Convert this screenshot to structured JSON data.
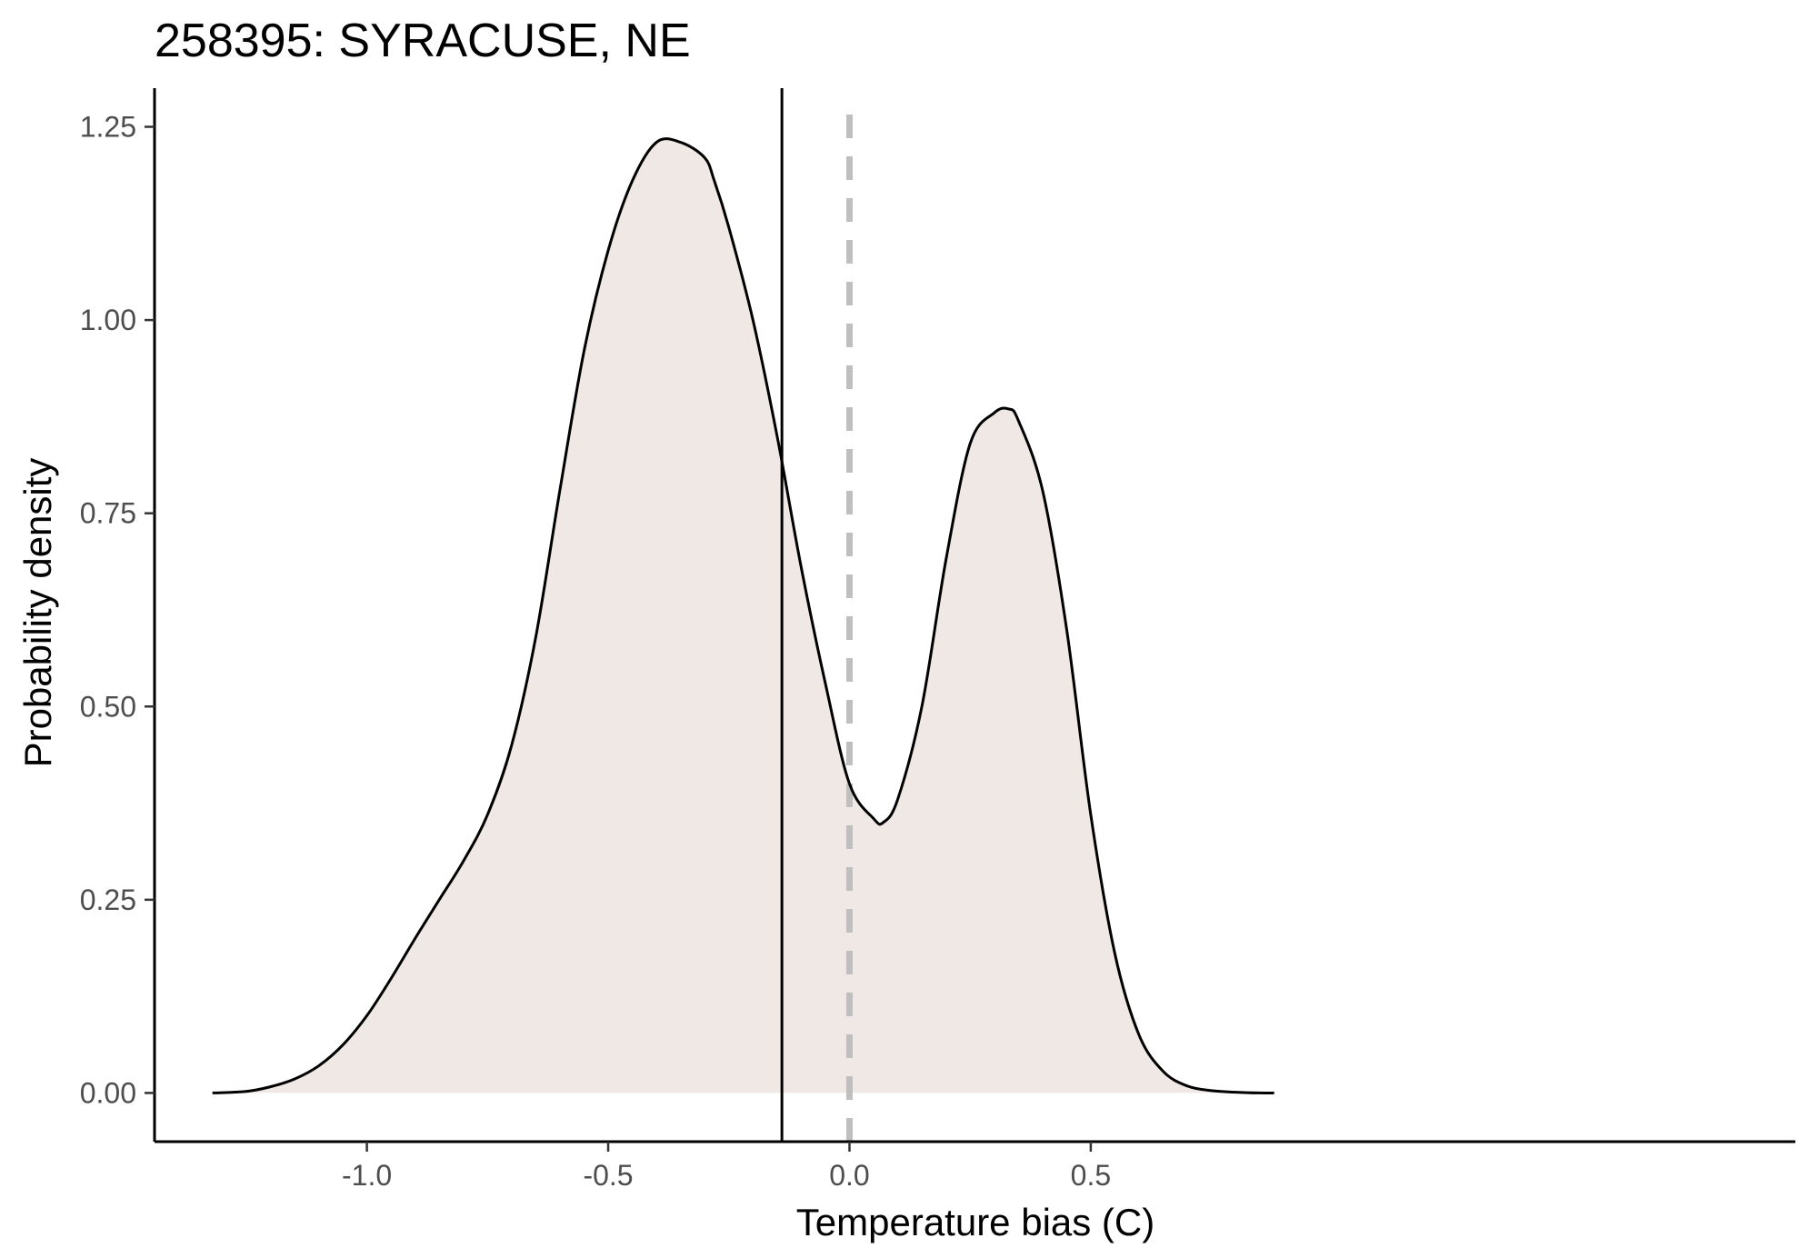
{
  "chart_data": {
    "type": "area",
    "title": "258395: SYRACUSE, NE",
    "xlabel": "Temperature bias (C)",
    "ylabel": "Probability density",
    "xlim": [
      -1.44,
      1.96
    ],
    "ylim": [
      -0.063,
      1.3
    ],
    "x_ticks": [
      {
        "value": -1.0,
        "label": "-1.0"
      },
      {
        "value": -0.5,
        "label": "-0.5"
      },
      {
        "value": 0.0,
        "label": "0.0"
      },
      {
        "value": 0.5,
        "label": "0.5"
      }
    ],
    "y_ticks": [
      {
        "value": 0.0,
        "label": "0.00"
      },
      {
        "value": 0.25,
        "label": "0.25"
      },
      {
        "value": 0.5,
        "label": "0.50"
      },
      {
        "value": 0.75,
        "label": "0.75"
      },
      {
        "value": 1.0,
        "label": "1.00"
      },
      {
        "value": 1.25,
        "label": "1.25"
      }
    ],
    "grid": false,
    "legend": "none",
    "fill_color": "#efe8e5",
    "line_color": "#000000",
    "mean_line": {
      "x": -0.14,
      "color": "#000000"
    },
    "reference_line": {
      "x": 0.0,
      "color": "#bfbfbf",
      "style": "dashed"
    },
    "series": [
      {
        "x": [
          -1.32,
          -1.25,
          -1.2,
          -1.15,
          -1.1,
          -1.05,
          -1.0,
          -0.95,
          -0.9,
          -0.85,
          -0.8,
          -0.75,
          -0.7,
          -0.65,
          -0.6,
          -0.55,
          -0.5,
          -0.45,
          -0.4,
          -0.35,
          -0.3,
          -0.28,
          -0.25,
          -0.2,
          -0.15,
          -0.1,
          -0.05,
          0.0,
          0.05,
          0.07,
          0.1,
          0.15,
          0.2,
          0.25,
          0.3,
          0.33,
          0.35,
          0.4,
          0.45,
          0.5,
          0.55,
          0.6,
          0.65,
          0.7,
          0.75,
          0.8,
          0.85,
          0.88
        ],
        "y": [
          0.0,
          0.002,
          0.008,
          0.018,
          0.035,
          0.062,
          0.1,
          0.148,
          0.2,
          0.25,
          0.3,
          0.36,
          0.45,
          0.59,
          0.78,
          0.96,
          1.09,
          1.18,
          1.23,
          1.23,
          1.21,
          1.18,
          1.12,
          1.0,
          0.85,
          0.68,
          0.53,
          0.4,
          0.355,
          0.35,
          0.38,
          0.5,
          0.69,
          0.84,
          0.88,
          0.885,
          0.87,
          0.78,
          0.6,
          0.36,
          0.18,
          0.075,
          0.028,
          0.009,
          0.003,
          0.001,
          0.0,
          0.0
        ]
      }
    ]
  }
}
